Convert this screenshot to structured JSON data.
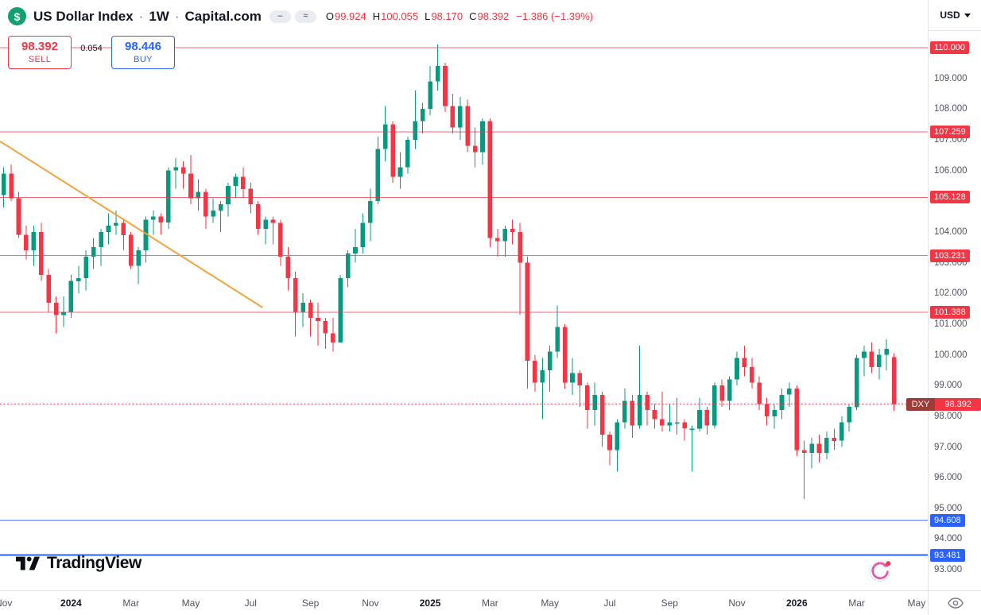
{
  "header": {
    "logo_glyph": "$",
    "title": "US Dollar Index",
    "separator": "·",
    "interval": "1W",
    "exchange": "Capital.com",
    "badges": [
      {
        "name": "status-dash",
        "glyph": "–"
      },
      {
        "name": "status-wave",
        "glyph": "≈"
      }
    ],
    "ohlc": {
      "items": [
        {
          "label": "O",
          "value": "99.924"
        },
        {
          "label": "H",
          "value": "100.055"
        },
        {
          "label": "L",
          "value": "98.170"
        },
        {
          "label": "C",
          "value": "98.392"
        }
      ],
      "change": "−1.386 (−1.39%)"
    }
  },
  "trade_widget": {
    "sell_price": "98.392",
    "sell_label": "SELL",
    "spread": "0.054",
    "buy_price": "98.446",
    "buy_label": "BUY"
  },
  "axis_control": {
    "currency": "USD"
  },
  "footer": {
    "brand": "TradingView"
  },
  "chart_data": {
    "type": "candlestick",
    "title": "US Dollar Index · 1W · Capital.com",
    "symbol": "DXY",
    "interval": "1W",
    "current": {
      "open": 99.924,
      "high": 100.055,
      "low": 98.17,
      "close": 98.392,
      "change": -1.386,
      "change_pct": -1.39
    },
    "ylim": [
      92.33,
      111.55
    ],
    "total_slots": 124,
    "up_color": "#089981",
    "down_color": "#f23645",
    "candles": [
      [
        105.2,
        106.1,
        104.8,
        105.9
      ],
      [
        105.9,
        106.2,
        105.0,
        105.1
      ],
      [
        105.1,
        105.3,
        103.8,
        103.9
      ],
      [
        103.9,
        104.2,
        103.1,
        103.4
      ],
      [
        103.4,
        104.2,
        102.9,
        104.0
      ],
      [
        104.0,
        104.3,
        102.4,
        102.6
      ],
      [
        102.6,
        102.8,
        101.4,
        101.7
      ],
      [
        101.7,
        101.9,
        100.7,
        101.3
      ],
      [
        101.3,
        101.9,
        100.9,
        101.4
      ],
      [
        101.4,
        102.6,
        101.2,
        102.4
      ],
      [
        102.4,
        102.9,
        102.0,
        102.5
      ],
      [
        102.5,
        103.4,
        102.1,
        103.2
      ],
      [
        103.2,
        103.8,
        102.8,
        103.5
      ],
      [
        103.5,
        104.1,
        102.9,
        104.0
      ],
      [
        104.0,
        104.6,
        103.6,
        104.2
      ],
      [
        104.2,
        104.7,
        103.9,
        104.3
      ],
      [
        104.3,
        104.4,
        103.4,
        103.9
      ],
      [
        103.9,
        104.0,
        102.8,
        102.9
      ],
      [
        102.9,
        103.5,
        102.3,
        103.4
      ],
      [
        103.4,
        104.5,
        103.0,
        104.4
      ],
      [
        104.4,
        104.7,
        103.9,
        104.5
      ],
      [
        104.5,
        104.6,
        103.9,
        104.3
      ],
      [
        104.3,
        106.1,
        104.1,
        106.0
      ],
      [
        106.0,
        106.4,
        105.4,
        106.1
      ],
      [
        106.1,
        106.3,
        105.4,
        105.9
      ],
      [
        105.9,
        106.5,
        104.9,
        105.1
      ],
      [
        105.1,
        105.7,
        104.7,
        105.3
      ],
      [
        105.3,
        105.4,
        104.1,
        104.5
      ],
      [
        104.5,
        105.1,
        104.3,
        104.7
      ],
      [
        104.7,
        105.0,
        104.0,
        104.9
      ],
      [
        104.9,
        105.6,
        104.5,
        105.5
      ],
      [
        105.5,
        105.9,
        105.1,
        105.8
      ],
      [
        105.8,
        106.1,
        105.1,
        105.4
      ],
      [
        105.4,
        105.6,
        104.6,
        104.9
      ],
      [
        104.9,
        105.0,
        103.9,
        104.1
      ],
      [
        104.1,
        104.5,
        103.6,
        104.4
      ],
      [
        104.4,
        104.5,
        103.6,
        104.3
      ],
      [
        104.3,
        104.4,
        102.9,
        103.2
      ],
      [
        103.2,
        103.5,
        102.1,
        102.5
      ],
      [
        102.5,
        102.7,
        100.6,
        101.4
      ],
      [
        101.4,
        102.0,
        100.9,
        101.7
      ],
      [
        101.7,
        101.8,
        100.6,
        101.2
      ],
      [
        101.2,
        101.7,
        100.3,
        101.1
      ],
      [
        101.1,
        101.2,
        100.2,
        100.7
      ],
      [
        100.7,
        101.2,
        100.1,
        100.4
      ],
      [
        100.4,
        102.6,
        100.4,
        102.5
      ],
      [
        102.5,
        103.4,
        102.2,
        103.3
      ],
      [
        103.3,
        104.1,
        103.0,
        103.5
      ],
      [
        103.5,
        104.6,
        103.3,
        104.3
      ],
      [
        104.3,
        105.4,
        103.7,
        105.0
      ],
      [
        105.0,
        107.1,
        104.9,
        106.7
      ],
      [
        106.7,
        108.1,
        106.3,
        107.5
      ],
      [
        107.5,
        107.6,
        105.6,
        105.8
      ],
      [
        105.8,
        106.6,
        105.4,
        106.1
      ],
      [
        106.1,
        107.1,
        105.9,
        107.0
      ],
      [
        107.0,
        108.6,
        106.7,
        107.6
      ],
      [
        107.6,
        108.2,
        107.2,
        108.0
      ],
      [
        108.0,
        109.4,
        107.8,
        108.9
      ],
      [
        108.9,
        110.1,
        108.6,
        109.4
      ],
      [
        109.4,
        109.5,
        107.9,
        108.1
      ],
      [
        108.1,
        108.5,
        107.2,
        107.4
      ],
      [
        107.4,
        108.4,
        107.0,
        108.1
      ],
      [
        108.1,
        108.3,
        106.6,
        106.8
      ],
      [
        106.8,
        107.4,
        106.1,
        106.6
      ],
      [
        106.6,
        107.7,
        106.2,
        107.6
      ],
      [
        107.6,
        107.7,
        103.5,
        103.8
      ],
      [
        103.8,
        104.1,
        103.2,
        103.7
      ],
      [
        103.7,
        104.2,
        103.2,
        104.1
      ],
      [
        104.1,
        104.4,
        103.6,
        104.0
      ],
      [
        104.0,
        104.3,
        101.3,
        103.0
      ],
      [
        103.0,
        103.2,
        98.9,
        99.8
      ],
      [
        99.8,
        100.0,
        98.8,
        99.1
      ],
      [
        99.1,
        99.9,
        97.9,
        99.5
      ],
      [
        99.5,
        100.3,
        98.8,
        100.1
      ],
      [
        100.1,
        101.6,
        99.9,
        100.9
      ],
      [
        100.9,
        101.0,
        98.9,
        99.1
      ],
      [
        99.1,
        99.9,
        98.7,
        99.4
      ],
      [
        99.4,
        99.5,
        98.3,
        99.0
      ],
      [
        99.0,
        99.1,
        97.6,
        98.2
      ],
      [
        98.2,
        99.1,
        97.7,
        98.7
      ],
      [
        98.7,
        98.8,
        97.0,
        97.4
      ],
      [
        97.4,
        97.5,
        96.4,
        96.9
      ],
      [
        96.9,
        97.9,
        96.2,
        97.8
      ],
      [
        97.8,
        98.9,
        97.6,
        98.5
      ],
      [
        98.5,
        98.7,
        97.3,
        97.7
      ],
      [
        97.7,
        100.3,
        97.6,
        98.7
      ],
      [
        98.7,
        98.8,
        97.7,
        98.2
      ],
      [
        98.2,
        98.4,
        97.6,
        97.9
      ],
      [
        97.9,
        98.8,
        97.5,
        97.7
      ],
      [
        97.7,
        98.4,
        97.5,
        97.8
      ],
      [
        97.8,
        98.6,
        97.4,
        97.8
      ],
      [
        97.8,
        97.9,
        97.2,
        97.6
      ],
      [
        97.6,
        97.7,
        96.2,
        97.6
      ],
      [
        97.6,
        98.6,
        97.5,
        98.2
      ],
      [
        98.2,
        98.3,
        97.4,
        97.7
      ],
      [
        97.7,
        99.1,
        97.6,
        99.0
      ],
      [
        99.0,
        99.2,
        98.3,
        98.5
      ],
      [
        98.5,
        99.3,
        98.2,
        99.2
      ],
      [
        99.2,
        100.1,
        99.0,
        99.9
      ],
      [
        99.9,
        100.3,
        99.3,
        99.6
      ],
      [
        99.6,
        99.9,
        98.9,
        99.1
      ],
      [
        99.1,
        99.3,
        98.2,
        98.4
      ],
      [
        98.4,
        98.6,
        97.7,
        98.0
      ],
      [
        98.0,
        98.4,
        97.6,
        98.2
      ],
      [
        98.2,
        98.9,
        97.9,
        98.7
      ],
      [
        98.7,
        99.1,
        98.3,
        98.9
      ],
      [
        98.9,
        99.0,
        96.7,
        96.9
      ],
      [
        96.9,
        97.2,
        95.3,
        96.8
      ],
      [
        96.8,
        97.3,
        96.3,
        97.1
      ],
      [
        97.1,
        97.4,
        96.5,
        96.8
      ],
      [
        96.8,
        97.5,
        96.6,
        97.3
      ],
      [
        97.3,
        97.6,
        96.9,
        97.2
      ],
      [
        97.2,
        98.0,
        97.0,
        97.8
      ],
      [
        97.8,
        98.4,
        97.5,
        98.3
      ],
      [
        98.3,
        100.0,
        98.2,
        99.9
      ],
      [
        99.9,
        100.3,
        99.3,
        100.1
      ],
      [
        100.1,
        100.4,
        99.4,
        99.6
      ],
      [
        99.6,
        100.2,
        99.2,
        100.0
      ],
      [
        100.0,
        100.5,
        99.5,
        100.2
      ],
      [
        99.924,
        100.055,
        98.17,
        98.392
      ]
    ],
    "levels": [
      {
        "price": 110.0,
        "label": "110.000",
        "color": "#f23645",
        "width": 1,
        "opacity": 0.75,
        "tag": "red"
      },
      {
        "price": 107.259,
        "label": "107.259",
        "color": "#f23645",
        "width": 1,
        "opacity": 0.75,
        "tag": "red"
      },
      {
        "price": 105.128,
        "label": "105.128",
        "color": "#f23645",
        "width": 1,
        "opacity": 0.75,
        "tag": "red"
      },
      {
        "price": 103.231,
        "label": "103.231",
        "color": "#f23645",
        "width": 1,
        "opacity": 0.75,
        "tag": "red"
      },
      {
        "price": 101.388,
        "label": "101.388",
        "color": "#f23645",
        "width": 1,
        "opacity": 0.75,
        "tag": "red"
      },
      {
        "price": 98.392,
        "label": "98.392",
        "symbol": "DXY",
        "color": "#f23645",
        "width": 1,
        "opacity": 0.9,
        "style": "dotted",
        "tag": "current"
      },
      {
        "price": 94.608,
        "label": "94.608",
        "color": "#2962ff",
        "width": 1,
        "opacity": 1,
        "tag": "blue"
      },
      {
        "price": 93.481,
        "label": "93.481",
        "color": "#2962ff",
        "width": 2,
        "opacity": 1,
        "tag": "blue"
      }
    ],
    "trendline": {
      "i1": -0.5,
      "p1": 106.95,
      "i2": 34.6,
      "p2": 101.54,
      "color": "#f2a33c",
      "width": 2
    },
    "price_ticks": [
      "93.000",
      "94.000",
      "95.000",
      "96.000",
      "97.000",
      "98.000",
      "99.000",
      "100.000",
      "101.000",
      "102.000",
      "103.000",
      "104.000",
      "105.000",
      "106.000",
      "107.000",
      "108.000",
      "109.000"
    ],
    "time_labels": [
      {
        "text": "Nov",
        "i": 0,
        "year": false
      },
      {
        "text": "2024",
        "i": 9,
        "year": true
      },
      {
        "text": "Mar",
        "i": 17,
        "year": false
      },
      {
        "text": "May",
        "i": 25,
        "year": false
      },
      {
        "text": "Jul",
        "i": 33,
        "year": false
      },
      {
        "text": "Sep",
        "i": 41,
        "year": false
      },
      {
        "text": "Nov",
        "i": 49,
        "year": false
      },
      {
        "text": "2025",
        "i": 57,
        "year": true
      },
      {
        "text": "Mar",
        "i": 65,
        "year": false
      },
      {
        "text": "May",
        "i": 73,
        "year": false
      },
      {
        "text": "Jul",
        "i": 81,
        "year": false
      },
      {
        "text": "Sep",
        "i": 89,
        "year": false
      },
      {
        "text": "Nov",
        "i": 98,
        "year": false
      },
      {
        "text": "2026",
        "i": 106,
        "year": true
      },
      {
        "text": "Mar",
        "i": 114,
        "year": false
      },
      {
        "text": "May",
        "i": 122,
        "year": false
      }
    ]
  }
}
